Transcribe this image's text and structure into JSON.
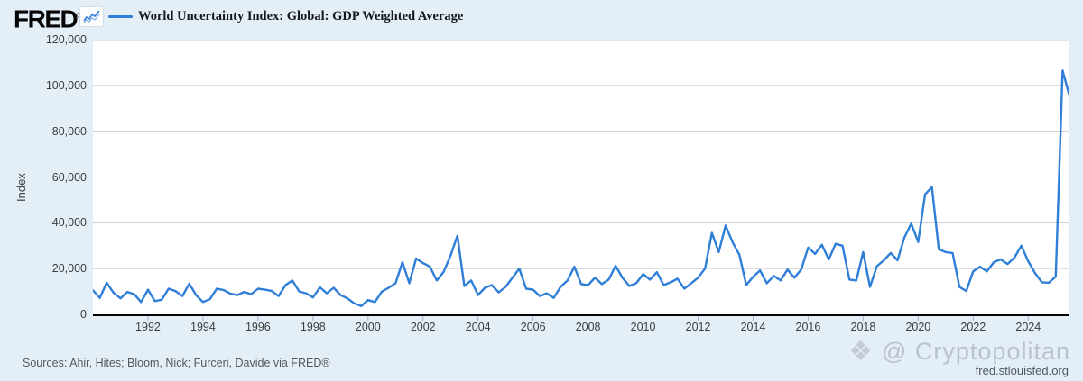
{
  "header": {
    "logo": "FRED",
    "logo_mark": "®",
    "legend": {
      "label": "World Uncertainty Index: Global: GDP Weighted Average",
      "line_color": "#2f7ed8"
    }
  },
  "footer": {
    "sources": "Sources: Ahir, Hites; Bloom, Nick; Furceri, Davide via FRED®",
    "watermark": "@ Cryptopolitan",
    "site": "fred.stlouisfed.org"
  },
  "colors": {
    "background": "#e4eef7",
    "plot_background": "#ffffff",
    "gridline": "#cbcbcb",
    "axis": "#000000",
    "tick": "#9db4ca",
    "line": "#2f7ed8",
    "text": "#3c3c3c"
  },
  "chart_data": {
    "type": "line",
    "title": "World Uncertainty Index: Global: GDP Weighted Average",
    "ylabel": "Index",
    "xlabel": "",
    "ylim": [
      0,
      120000
    ],
    "grid": "horizontal",
    "legend_position": "top-left",
    "frequency": "quarterly",
    "x_start": "1990 Q1",
    "x_end": "2025 Q3",
    "yticks": [
      {
        "value": 0,
        "label": "0"
      },
      {
        "value": 20000,
        "label": "20,000"
      },
      {
        "value": 40000,
        "label": "40,000"
      },
      {
        "value": 60000,
        "label": "60,000"
      },
      {
        "value": 80000,
        "label": "80,000"
      },
      {
        "value": 100000,
        "label": "100,000"
      },
      {
        "value": 120000,
        "label": "120,000"
      }
    ],
    "xticks": [
      {
        "year": 1992,
        "label": "1992"
      },
      {
        "year": 1994,
        "label": "1994"
      },
      {
        "year": 1996,
        "label": "1996"
      },
      {
        "year": 1998,
        "label": "1998"
      },
      {
        "year": 2000,
        "label": "2000"
      },
      {
        "year": 2002,
        "label": "2002"
      },
      {
        "year": 2004,
        "label": "2004"
      },
      {
        "year": 2006,
        "label": "2006"
      },
      {
        "year": 2008,
        "label": "2008"
      },
      {
        "year": 2010,
        "label": "2010"
      },
      {
        "year": 2012,
        "label": "2012"
      },
      {
        "year": 2014,
        "label": "2014"
      },
      {
        "year": 2016,
        "label": "2016"
      },
      {
        "year": 2018,
        "label": "2018"
      },
      {
        "year": 2020,
        "label": "2020"
      },
      {
        "year": 2022,
        "label": "2022"
      },
      {
        "year": 2024,
        "label": "2024"
      }
    ],
    "start_year": 1990,
    "values": [
      10500,
      7200,
      13800,
      9400,
      7000,
      9800,
      8800,
      5400,
      10800,
      5800,
      6400,
      11200,
      10200,
      8000,
      13400,
      8400,
      5400,
      6600,
      11200,
      10600,
      9000,
      8400,
      9800,
      8800,
      11200,
      10800,
      10200,
      8000,
      12800,
      14800,
      10000,
      9200,
      7400,
      11800,
      9200,
      11600,
      8400,
      7000,
      4800,
      3600,
      6200,
      5400,
      9900,
      11600,
      13600,
      22800,
      13600,
      24400,
      22400,
      20800,
      14800,
      18600,
      25600,
      34400,
      12400,
      14800,
      8400,
      11600,
      12800,
      9600,
      12000,
      16000,
      20000,
      11200,
      10800,
      8000,
      9200,
      7200,
      12000,
      14800,
      20800,
      13200,
      12800,
      16000,
      13200,
      15200,
      21200,
      16000,
      12400,
      13600,
      17600,
      15200,
      18400,
      12800,
      14000,
      15600,
      11200,
      13600,
      16000,
      20000,
      35600,
      27200,
      38800,
      31600,
      26000,
      12800,
      16400,
      19200,
      13600,
      16800,
      14800,
      19600,
      16000,
      19600,
      29200,
      26400,
      30400,
      24000,
      30800,
      30000,
      15200,
      14800,
      27200,
      12000,
      21000,
      23600,
      26800,
      23600,
      33600,
      39600,
      31600,
      52400,
      55600,
      28400,
      27200,
      26800,
      12000,
      10200,
      18800,
      20800,
      18800,
      22800,
      24000,
      22000,
      24800,
      30000,
      23200,
      18000,
      14000,
      13800,
      16500,
      106500,
      95500
    ]
  }
}
